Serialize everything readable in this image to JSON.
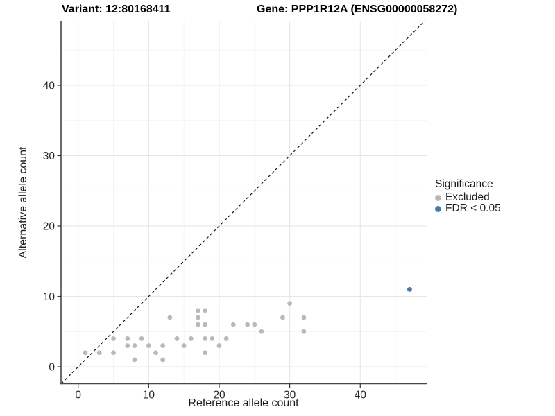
{
  "titles": {
    "variant": "Variant: 12:80168411",
    "gene": "Gene: PPP1R12A (ENSG00000058272)"
  },
  "chart_data": {
    "type": "scatter",
    "xlabel": "Reference allele count",
    "ylabel": "Alternative allele count",
    "xlim": [
      -2.43,
      49.42
    ],
    "ylim": [
      -2.41,
      49.16
    ],
    "xticks": [
      0,
      10,
      20,
      30,
      40
    ],
    "yticks": [
      0,
      10,
      20,
      30,
      40
    ],
    "xticks_minor": [
      5,
      15,
      25,
      35,
      45
    ],
    "yticks_minor": [
      5,
      15,
      25,
      35,
      45
    ],
    "grid": true,
    "reference_line": {
      "type": "identity y=x",
      "style": "dashed",
      "color": "#111111"
    },
    "legend": {
      "title": "Significance",
      "position": "right"
    },
    "series": [
      {
        "name": "Excluded",
        "color": "#b9b9b9",
        "points": [
          [
            1,
            2
          ],
          [
            3,
            2
          ],
          [
            5,
            2
          ],
          [
            5,
            4
          ],
          [
            7,
            3
          ],
          [
            7,
            4
          ],
          [
            8,
            1
          ],
          [
            8,
            3
          ],
          [
            9,
            4
          ],
          [
            10,
            3
          ],
          [
            11,
            2
          ],
          [
            12,
            1
          ],
          [
            12,
            3
          ],
          [
            13,
            7
          ],
          [
            14,
            4
          ],
          [
            15,
            3
          ],
          [
            16,
            4
          ],
          [
            17,
            6
          ],
          [
            17,
            7
          ],
          [
            17,
            8
          ],
          [
            18,
            2
          ],
          [
            18,
            4
          ],
          [
            18,
            6
          ],
          [
            18,
            8
          ],
          [
            19,
            4
          ],
          [
            20,
            3
          ],
          [
            21,
            4
          ],
          [
            22,
            6
          ],
          [
            24,
            6
          ],
          [
            25,
            6
          ],
          [
            26,
            5
          ],
          [
            29,
            7
          ],
          [
            30,
            9
          ],
          [
            32,
            5
          ],
          [
            32,
            7
          ]
        ]
      },
      {
        "name": "FDR < 0.05",
        "color": "#4478b0",
        "points": [
          [
            47,
            11
          ]
        ]
      }
    ],
    "colors": {
      "grid_major": "#e6e6e6",
      "grid_minor": "#f3f3f3",
      "axis_line": "#474747",
      "tick": "#333333",
      "tick_label": "#262626"
    }
  }
}
